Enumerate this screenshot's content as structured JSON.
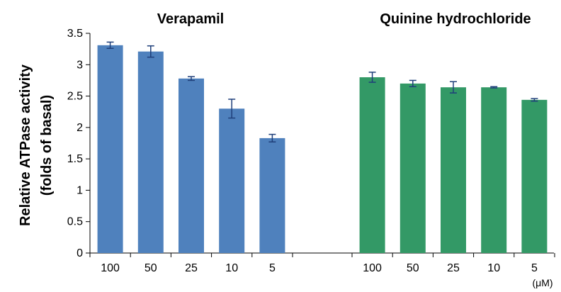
{
  "chart_data": {
    "type": "bar",
    "ylabel_line1": "Relative ATPase activity",
    "ylabel_line2": "(folds of basal)",
    "unit_label": "(μM)",
    "ylim": [
      0,
      3.5
    ],
    "yticks": [
      "0",
      "0.5",
      "1",
      "1.5",
      "2",
      "2.5",
      "3",
      "3.5"
    ],
    "ytick_values": [
      0,
      0.5,
      1,
      1.5,
      2,
      2.5,
      3,
      3.5
    ],
    "groups": [
      {
        "title": "Verapamil",
        "color": "#4f81bd",
        "categories": [
          "100",
          "50",
          "25",
          "10",
          "5"
        ],
        "values": [
          3.31,
          3.21,
          2.78,
          2.3,
          1.83
        ],
        "errors": [
          0.05,
          0.09,
          0.03,
          0.15,
          0.06
        ]
      },
      {
        "title": "Quinine hydrochloride",
        "color": "#339966",
        "categories": [
          "100",
          "50",
          "25",
          "10",
          "5"
        ],
        "values": [
          2.8,
          2.7,
          2.64,
          2.64,
          2.44
        ],
        "errors": [
          0.08,
          0.05,
          0.09,
          0.01,
          0.02
        ]
      }
    ],
    "error_color": "#1f3f7a",
    "grid": false
  }
}
